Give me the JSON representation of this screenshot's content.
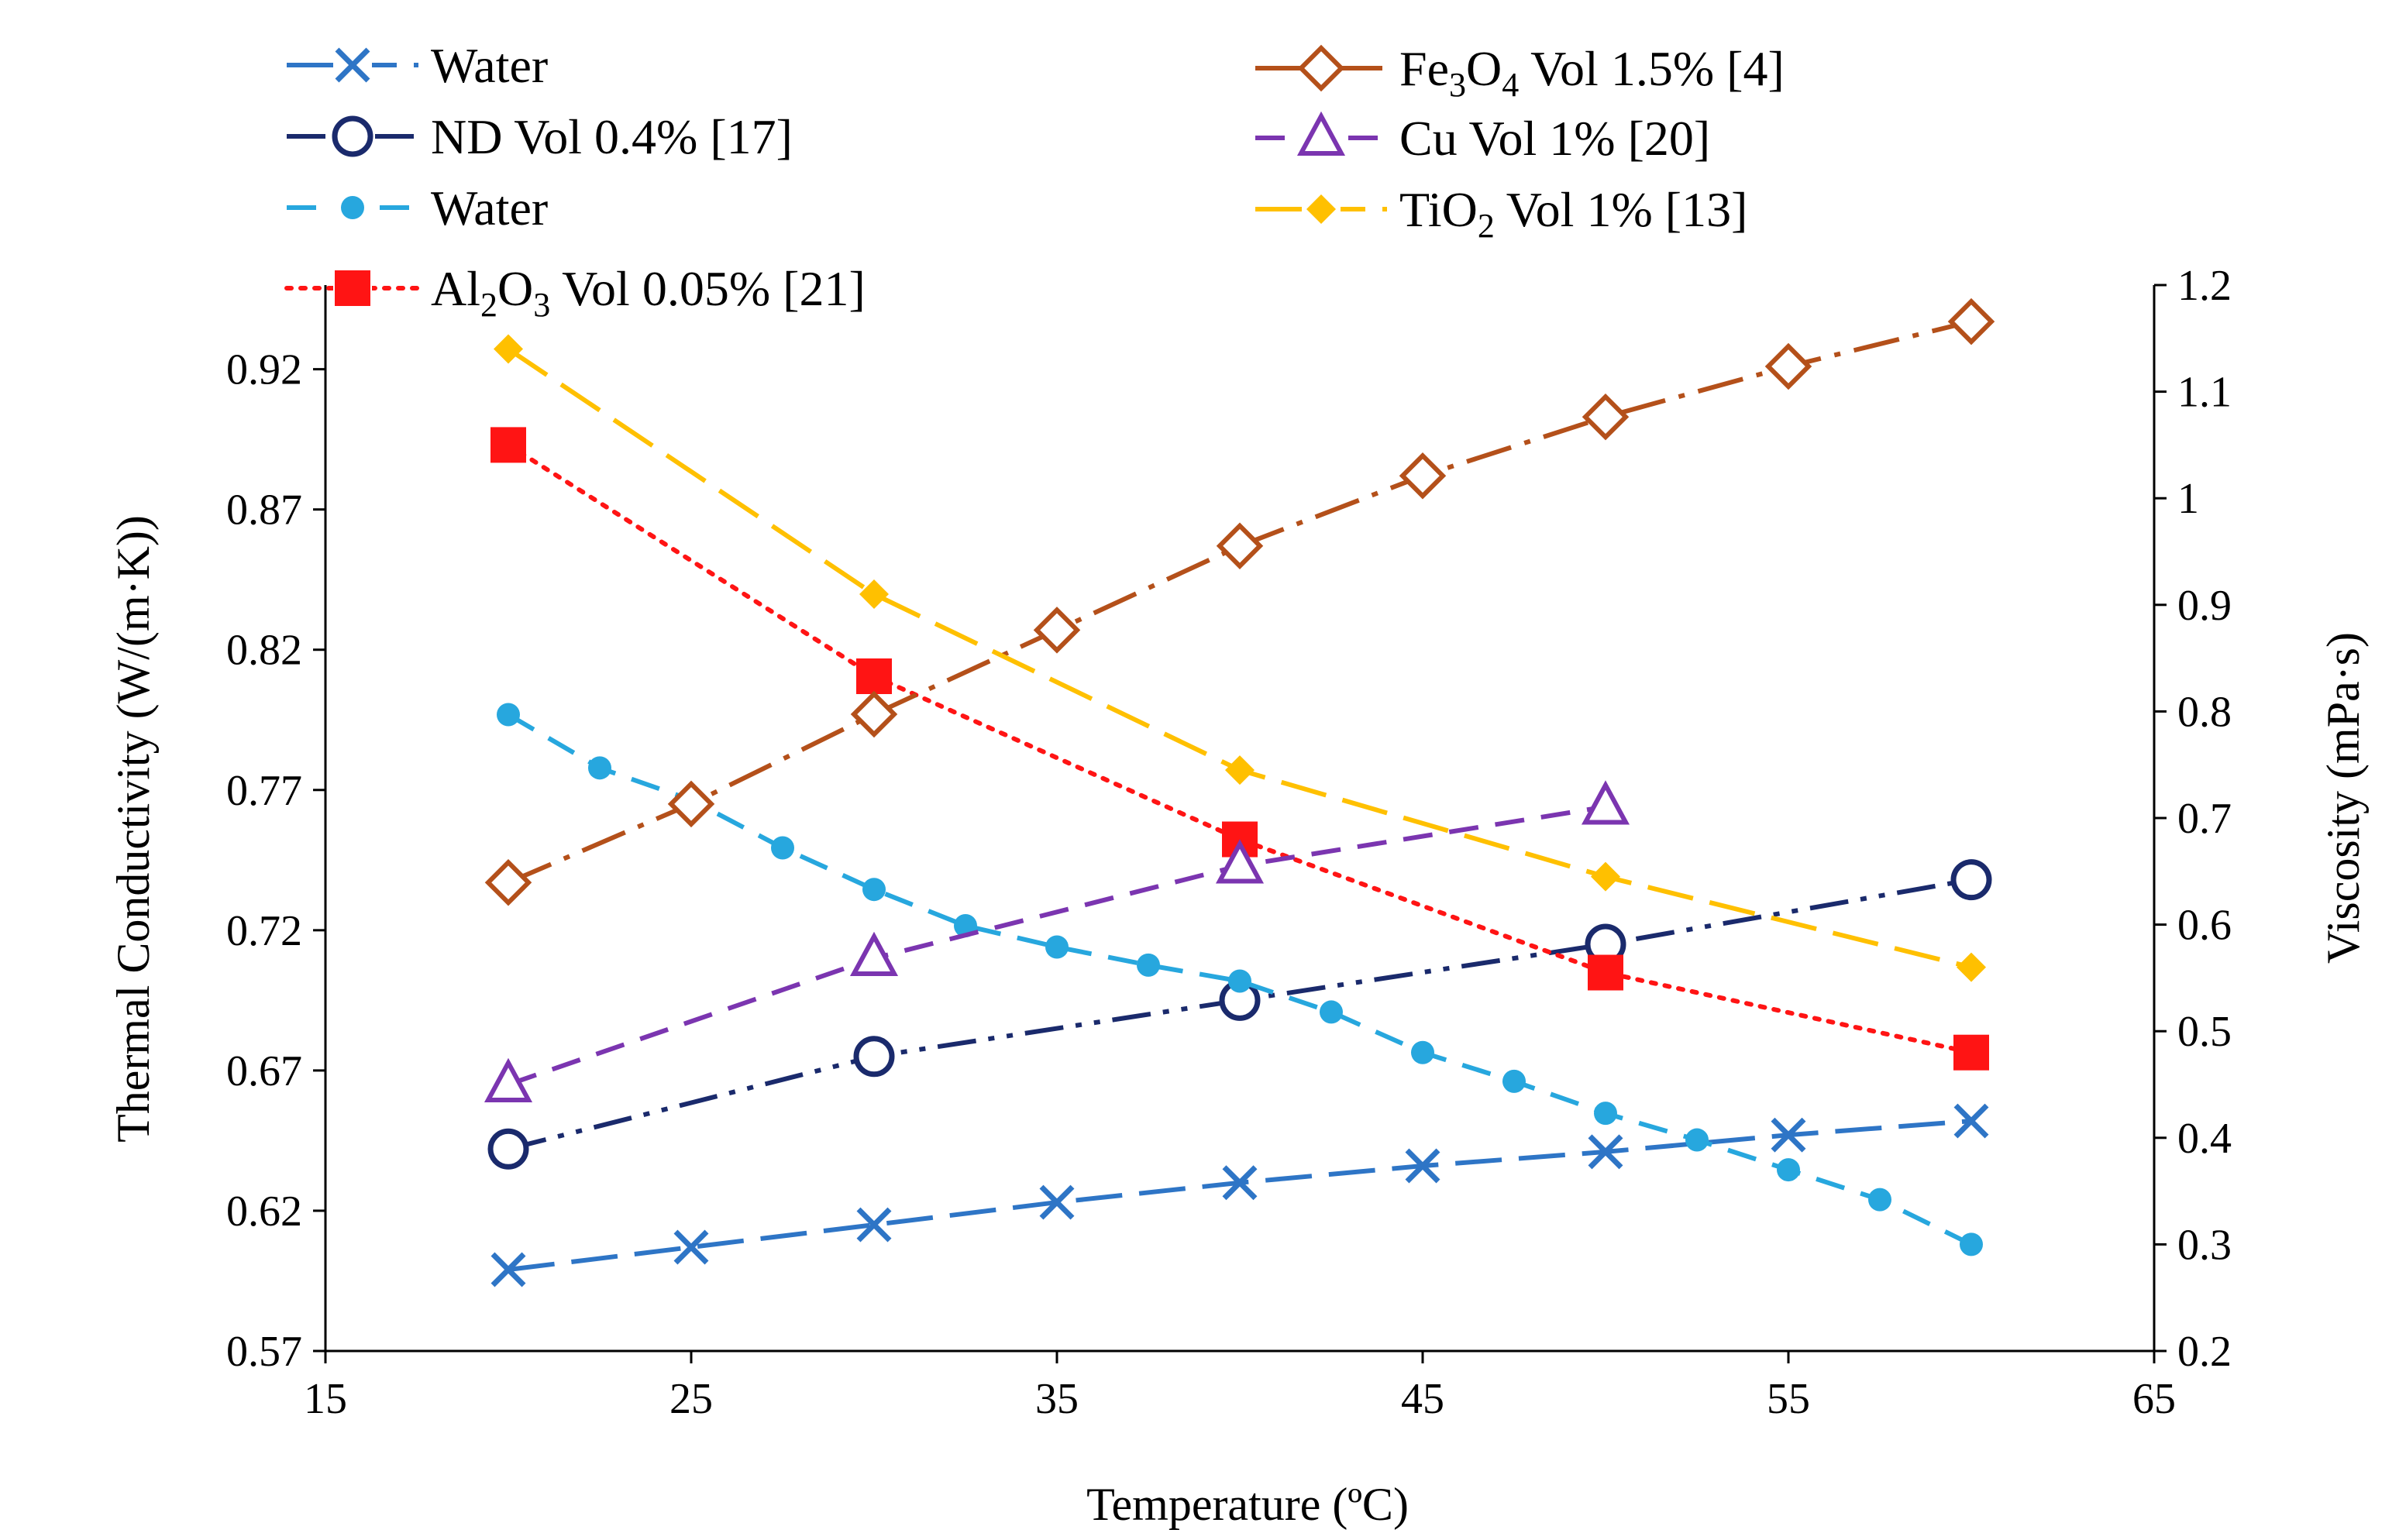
{
  "chart_data": {
    "type": "line",
    "title": "",
    "xlabel": "Temperature (ºC)",
    "ylabel": "Thermal Conductivity (W/(m·K))",
    "y2label": "Viscosity (mPa·s)",
    "xlim": [
      15,
      65
    ],
    "ylim": [
      0.57,
      0.95
    ],
    "y2lim": [
      0.2,
      1.2
    ],
    "xticks": [
      "15",
      "25",
      "35",
      "45",
      "55",
      "65"
    ],
    "yticks": [
      "0.57",
      "0.62",
      "0.67",
      "0.72",
      "0.77",
      "0.82",
      "0.87",
      "0.92"
    ],
    "y2ticks": [
      "0.2",
      "0.3",
      "0.4",
      "0.5",
      "0.6",
      "0.7",
      "0.8",
      "0.9",
      "1",
      "1.1",
      "1.2"
    ],
    "grid": false,
    "legend_position": "top",
    "series": [
      {
        "name": "Water",
        "axis": "left",
        "color": "#2E75C6",
        "marker": "x",
        "dash": "long-dash",
        "x": [
          20,
          25,
          30,
          35,
          40,
          45,
          50,
          55,
          60
        ],
        "values": [
          0.599,
          0.607,
          0.615,
          0.623,
          0.63,
          0.636,
          0.641,
          0.647,
          0.652
        ]
      },
      {
        "name": "ND Vol 0.4% [17]",
        "axis": "left",
        "color": "#1A2A6C",
        "marker": "open-circle",
        "dash": "dash-dot-dot",
        "x": [
          20,
          30,
          40,
          50,
          60
        ],
        "values": [
          0.642,
          0.675,
          0.695,
          0.715,
          0.738
        ]
      },
      {
        "name": "Water",
        "axis": "right",
        "color": "#27A7DE",
        "marker": "dot",
        "dash": "dash",
        "x": [
          20,
          22.5,
          25,
          27.5,
          30,
          32.5,
          35,
          37.5,
          40,
          42.5,
          45,
          47.5,
          50,
          52.5,
          55,
          57.5,
          60
        ],
        "values": [
          0.797,
          0.747,
          0.717,
          0.672,
          0.633,
          0.599,
          0.579,
          0.562,
          0.547,
          0.518,
          0.48,
          0.453,
          0.423,
          0.398,
          0.37,
          0.342,
          0.3
        ]
      },
      {
        "name": "Al2O3 Vol 0.05% [21]",
        "axis": "right",
        "color": "#FF1414",
        "marker": "filled-square",
        "dash": "dotted",
        "x": [
          20,
          30,
          40,
          50,
          60
        ],
        "values": [
          1.05,
          0.833,
          0.68,
          0.555,
          0.48
        ]
      },
      {
        "name": "Fe3O4 Vol 1.5% [4]",
        "axis": "left",
        "color": "#B4501A",
        "marker": "open-diamond",
        "dash": "dash-dot",
        "x": [
          20,
          25,
          30,
          35,
          40,
          45,
          50,
          55,
          60
        ],
        "values": [
          0.737,
          0.765,
          0.797,
          0.827,
          0.857,
          0.882,
          0.903,
          0.921,
          0.937
        ]
      },
      {
        "name": "Cu Vol 1% [20]",
        "axis": "left",
        "color": "#7B35B0",
        "marker": "open-triangle",
        "dash": "dash",
        "x": [
          20,
          30,
          40,
          50
        ],
        "values": [
          0.665,
          0.71,
          0.743,
          0.764
        ]
      },
      {
        "name": "TiO2 Vol 1% [13]",
        "axis": "right",
        "color": "#FFC000",
        "marker": "filled-diamond",
        "dash": "long-dash",
        "x": [
          20,
          30,
          40,
          50,
          60
        ],
        "values": [
          1.14,
          0.91,
          0.745,
          0.645,
          0.56
        ]
      }
    ]
  },
  "legend": {
    "items": [
      {
        "series": 0,
        "pre": "Water",
        "sub1": "",
        "mid": "",
        "sub2": "",
        "post": ""
      },
      {
        "series": 1,
        "pre": "ND Vol 0.4% [17]",
        "sub1": "",
        "mid": "",
        "sub2": "",
        "post": ""
      },
      {
        "series": 2,
        "pre": "Water",
        "sub1": "",
        "mid": "",
        "sub2": "",
        "post": ""
      },
      {
        "series": 3,
        "pre": "Al",
        "sub1": "2",
        "mid": "O",
        "sub2": "3",
        "post": " Vol 0.05% [21]"
      },
      {
        "series": 4,
        "pre": "Fe",
        "sub1": "3",
        "mid": "O",
        "sub2": "4",
        "post": " Vol 1.5% [4]"
      },
      {
        "series": 5,
        "pre": "Cu Vol 1% [20]",
        "sub1": "",
        "mid": "",
        "sub2": "",
        "post": ""
      },
      {
        "series": 6,
        "pre": "TiO",
        "sub1": "2",
        "mid": "",
        "sub2": "",
        "post": " Vol 1% [13]"
      }
    ]
  }
}
